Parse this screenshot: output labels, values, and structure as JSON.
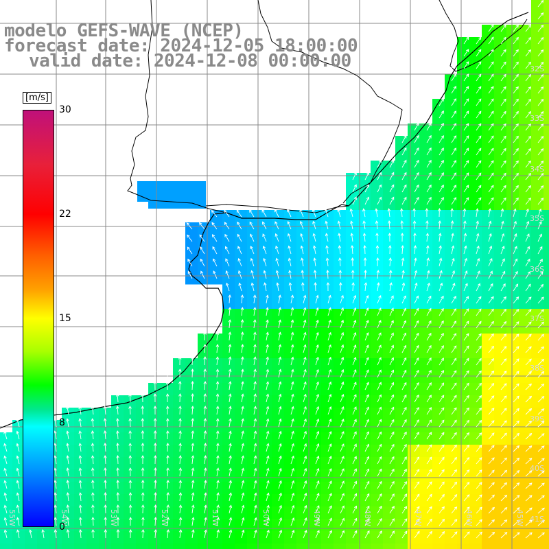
{
  "title": {
    "line1": "modelo GEFS-WAVE (NCEP)",
    "line2": "forecast date: 2024-12-05 18:00:00",
    "line3": "valid date: 2024-12-08 00:00:00"
  },
  "colorbar": {
    "units": "[m/s]",
    "ticks": [
      "30",
      "22",
      "15",
      "8",
      "0"
    ],
    "tick_values": [
      30,
      22,
      15,
      8,
      0
    ],
    "colors": [
      "#0000ff",
      "#0098ff",
      "#00ffff",
      "#00ff00",
      "#ffff00",
      "#ff0000",
      "#c0107a"
    ]
  },
  "grid": {
    "lat_labels": [
      "32S",
      "33S",
      "34S",
      "35S",
      "36S",
      "37S",
      "38S",
      "39S",
      "40S",
      "41S"
    ],
    "lon_labels": [
      "55W",
      "54W",
      "53W",
      "52W",
      "51W",
      "50W",
      "49W",
      "48W",
      "47W",
      "46W",
      "45W"
    ]
  },
  "map": {
    "land_color": "#ffffff",
    "coast_color": "#000000",
    "grid_color": "#888888",
    "arrow_color": "#ffffff"
  }
}
